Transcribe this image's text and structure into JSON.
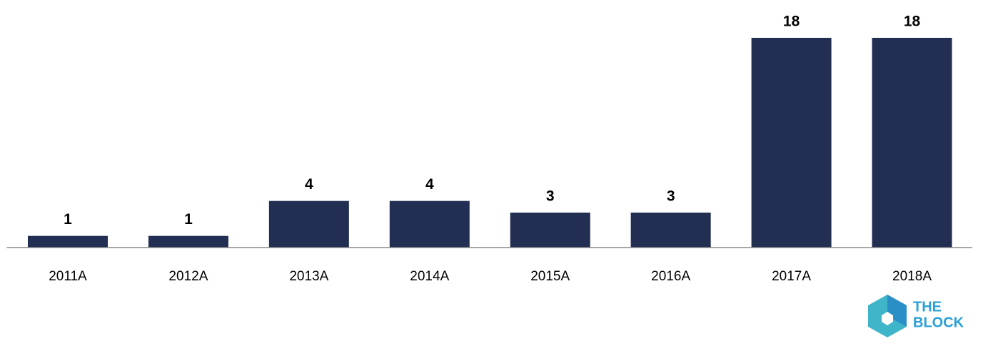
{
  "chart_data": {
    "type": "bar",
    "categories": [
      "2011A",
      "2012A",
      "2013A",
      "2014A",
      "2015A",
      "2016A",
      "2017A",
      "2018A"
    ],
    "values": [
      1,
      1,
      4,
      4,
      3,
      3,
      18,
      18
    ],
    "color": "#232f52"
  },
  "logo": {
    "line1": "THE",
    "line2": "BLOCK"
  }
}
